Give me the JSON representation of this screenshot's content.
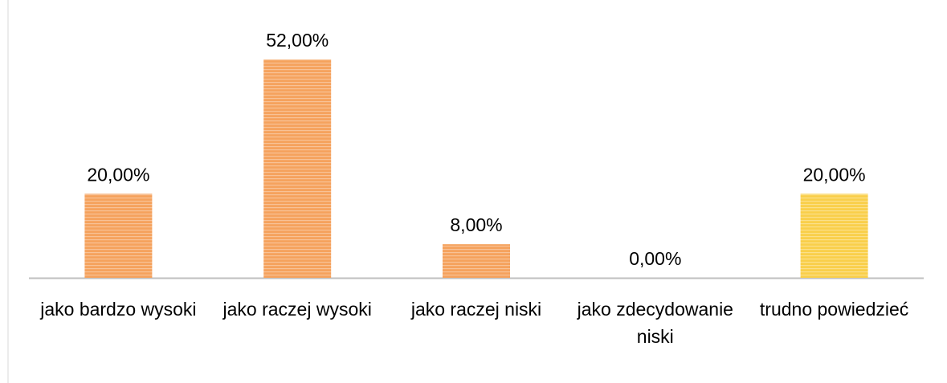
{
  "chart_data": {
    "type": "bar",
    "categories": [
      "jako bardzo wysoki",
      "jako raczej wysoki",
      "jako raczej niski",
      "jako zdecydowanie niski",
      "trudno powiedzieć"
    ],
    "values": [
      20,
      52,
      8,
      0,
      20
    ],
    "value_labels": [
      "20,00%",
      "52,00%",
      "8,00%",
      "0,00%",
      "20,00%"
    ],
    "colors": [
      "#f5a25d",
      "#f5a25d",
      "#f5a25d",
      "#f5a25d",
      "#f9cf4a"
    ]
  }
}
